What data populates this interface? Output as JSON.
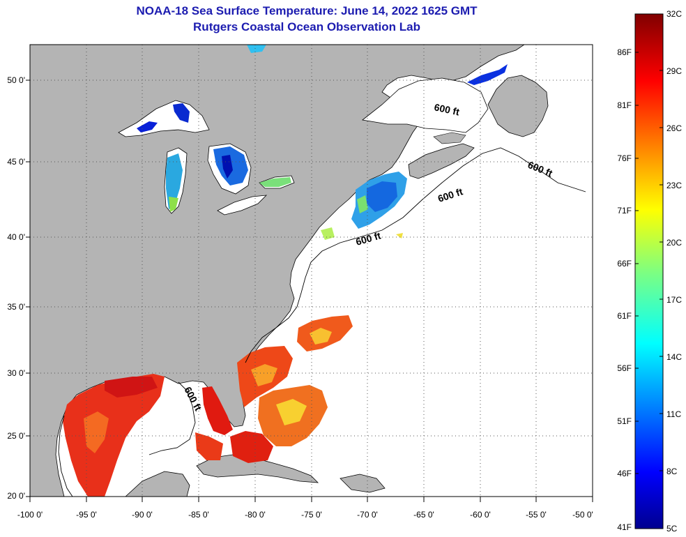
{
  "title": {
    "line1": "NOAA-18 Sea Surface Temperature:  June 14, 2022 1625 GMT",
    "line2": "Rutgers Coastal Ocean Observation Lab"
  },
  "map": {
    "lat_labels": [
      "50 0'",
      "45 0'",
      "40 0'",
      "35 0'",
      "30 0'",
      "25 0'",
      "20 0'"
    ],
    "lon_labels": [
      "-100 0'",
      "-95 0'",
      "-90 0'",
      "-85 0'",
      "-80 0'",
      "-75 0'",
      "-70 0'",
      "-65 0'",
      "-60 0'",
      "-55 0'",
      "-50 0'"
    ],
    "lon_range": [
      -100,
      -50
    ],
    "lat_range": [
      20,
      52.5
    ],
    "contour_label": "600 ft",
    "colors": {
      "land": "#b4b4b4",
      "ocean": "#ffffff",
      "frame": "#000000"
    }
  },
  "colorbar": {
    "fahrenheit": [
      "86F",
      "81F",
      "76F",
      "71F",
      "66F",
      "61F",
      "56F",
      "51F",
      "46F",
      "41F"
    ],
    "celsius": [
      "32C",
      "29C",
      "26C",
      "23C",
      "20C",
      "17C",
      "14C",
      "11C",
      "8C",
      "5C"
    ],
    "range_c": [
      5,
      32
    ],
    "colormap": "jet"
  }
}
